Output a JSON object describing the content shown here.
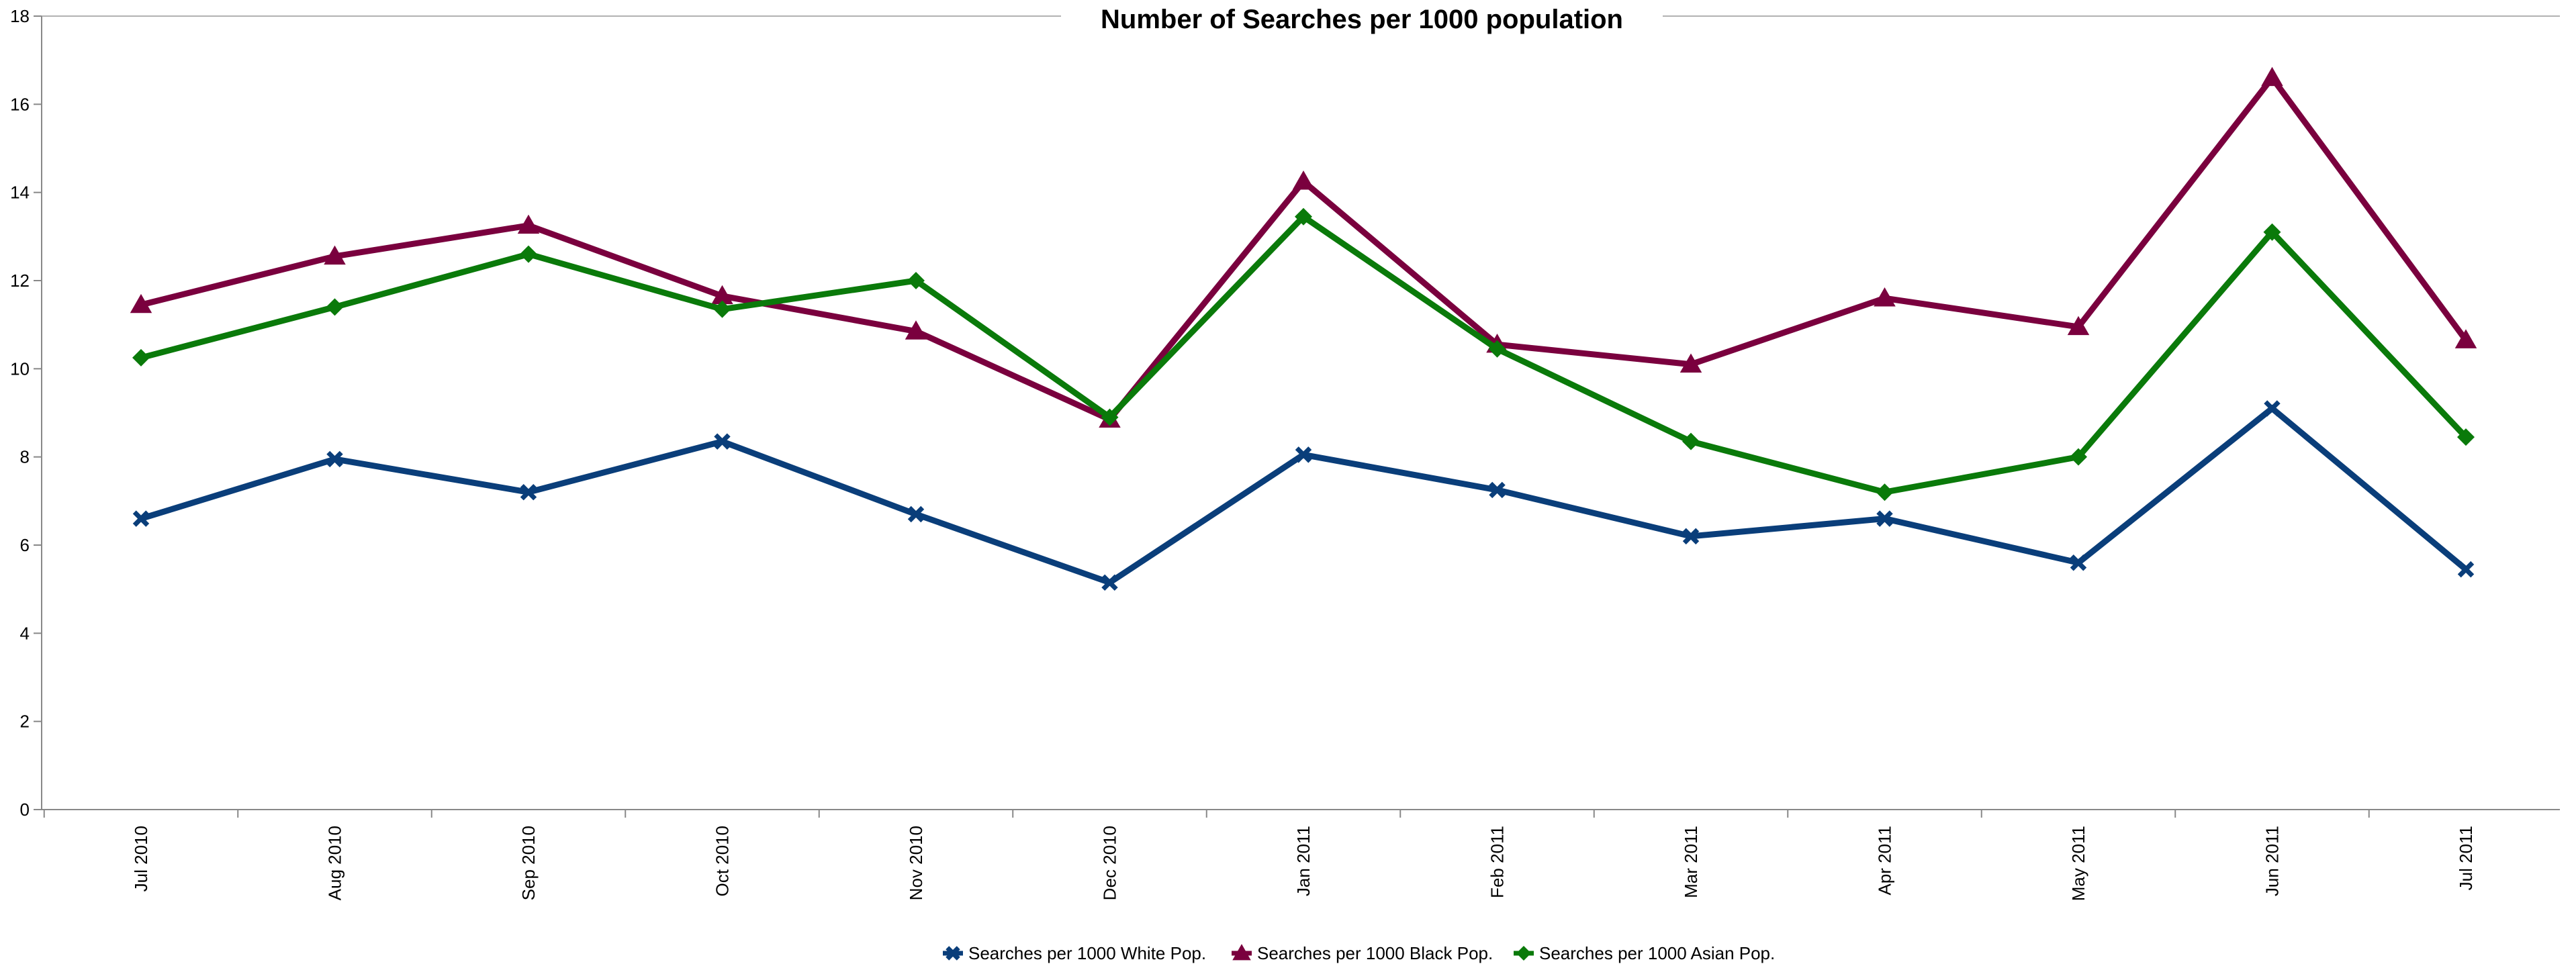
{
  "chart_data": {
    "type": "line",
    "title": "Number of Searches per 1000 population",
    "xlabel": "",
    "ylabel": "",
    "categories": [
      "Jul 2010",
      "Aug 2010",
      "Sep 2010",
      "Oct 2010",
      "Nov 2010",
      "Dec 2010",
      "Jan 2011",
      "Feb 2011",
      "Mar 2011",
      "Apr 2011",
      "May 2011",
      "Jun 2011",
      "Jul 2011"
    ],
    "ylim": [
      0,
      18
    ],
    "yticks": [
      0,
      2,
      4,
      6,
      8,
      10,
      12,
      14,
      16,
      18
    ],
    "grid": false,
    "legend_position": "bottom",
    "series": [
      {
        "name": "Searches per 1000 White Pop.",
        "color": "#0a3e7a",
        "marker": "x",
        "values": [
          6.6,
          7.95,
          7.2,
          8.35,
          6.7,
          5.15,
          8.05,
          7.25,
          6.2,
          6.6,
          5.6,
          9.1,
          5.45
        ]
      },
      {
        "name": "Searches per 1000  Black Pop.",
        "color": "#7a003e",
        "marker": "triangle",
        "values": [
          11.45,
          12.55,
          13.25,
          11.65,
          10.85,
          8.85,
          14.25,
          10.55,
          10.1,
          11.6,
          10.95,
          16.6,
          10.65
        ]
      },
      {
        "name": "Searches per 1000 Asian Pop.",
        "color": "#0a7a0a",
        "marker": "diamond",
        "values": [
          10.25,
          11.4,
          12.6,
          11.35,
          12.0,
          8.9,
          13.45,
          10.45,
          8.35,
          7.2,
          8.0,
          13.1,
          8.45
        ]
      }
    ]
  }
}
